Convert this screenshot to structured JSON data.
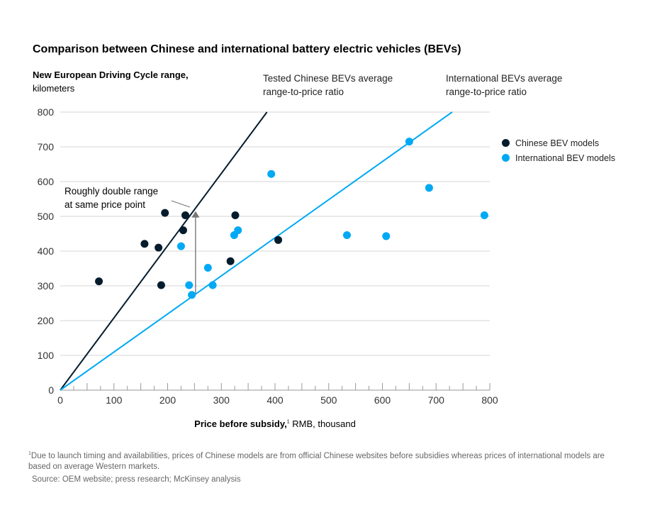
{
  "chart_data": {
    "type": "scatter",
    "title": "Comparison between Chinese and international battery electric vehicles (BEVs)",
    "ylabel_bold": "New European Driving Cycle range,",
    "ylabel_rest": " kilometers",
    "xlabel_bold": "Price before subsidy,",
    "xlabel_sup": "1",
    "xlabel_rest": " RMB, thousand",
    "xlim": [
      0,
      800
    ],
    "ylim": [
      0,
      800
    ],
    "xticks": [
      0,
      100,
      200,
      300,
      400,
      500,
      600,
      700,
      800
    ],
    "yticks": [
      0,
      100,
      200,
      300,
      400,
      500,
      600,
      700,
      800
    ],
    "grid": "horizontal",
    "legend_position": "right",
    "series": [
      {
        "name": "Chinese BEV models",
        "color": "#051c2c",
        "points": [
          [
            72,
            313
          ],
          [
            157,
            421
          ],
          [
            183,
            410
          ],
          [
            188,
            302
          ],
          [
            195,
            510
          ],
          [
            229,
            460
          ],
          [
            233,
            503
          ],
          [
            317,
            371
          ],
          [
            326,
            503
          ],
          [
            406,
            432
          ]
        ]
      },
      {
        "name": "International BEV models",
        "color": "#00a9f4",
        "points": [
          [
            225,
            414
          ],
          [
            240,
            302
          ],
          [
            245,
            274
          ],
          [
            275,
            352
          ],
          [
            284,
            302
          ],
          [
            324,
            446
          ],
          [
            331,
            460
          ],
          [
            393,
            622
          ],
          [
            534,
            446
          ],
          [
            607,
            443
          ],
          [
            650,
            715
          ],
          [
            687,
            582
          ],
          [
            790,
            503
          ]
        ]
      }
    ],
    "trend_lines": [
      {
        "label": "Tested Chinese BEVs average range-to-price ratio",
        "color": "#051c2c",
        "from": [
          0,
          0
        ],
        "to": [
          385,
          800
        ]
      },
      {
        "label": "International BEVs average range-to-price ratio",
        "color": "#00a9f4",
        "from": [
          0,
          0
        ],
        "to": [
          730,
          800
        ]
      }
    ],
    "annotation": {
      "text_line1": "Roughly double range",
      "text_line2": "at same price point",
      "arrow_x": 252,
      "arrow_from_y": 275,
      "arrow_to_y": 515
    }
  },
  "notes": {
    "tested_line1": "Tested Chinese BEVs average",
    "tested_line2": "range-to-price ratio",
    "intl_line1": "International BEVs average",
    "intl_line2": "range-to-price ratio",
    "footnote_sup": "1",
    "footnote_text": "Due to launch timing and availabilities, prices of Chinese models are from official Chinese websites before subsidies whereas prices of international models are based on average Western markets.",
    "source": "Source: OEM website; press research; McKinsey analysis"
  }
}
